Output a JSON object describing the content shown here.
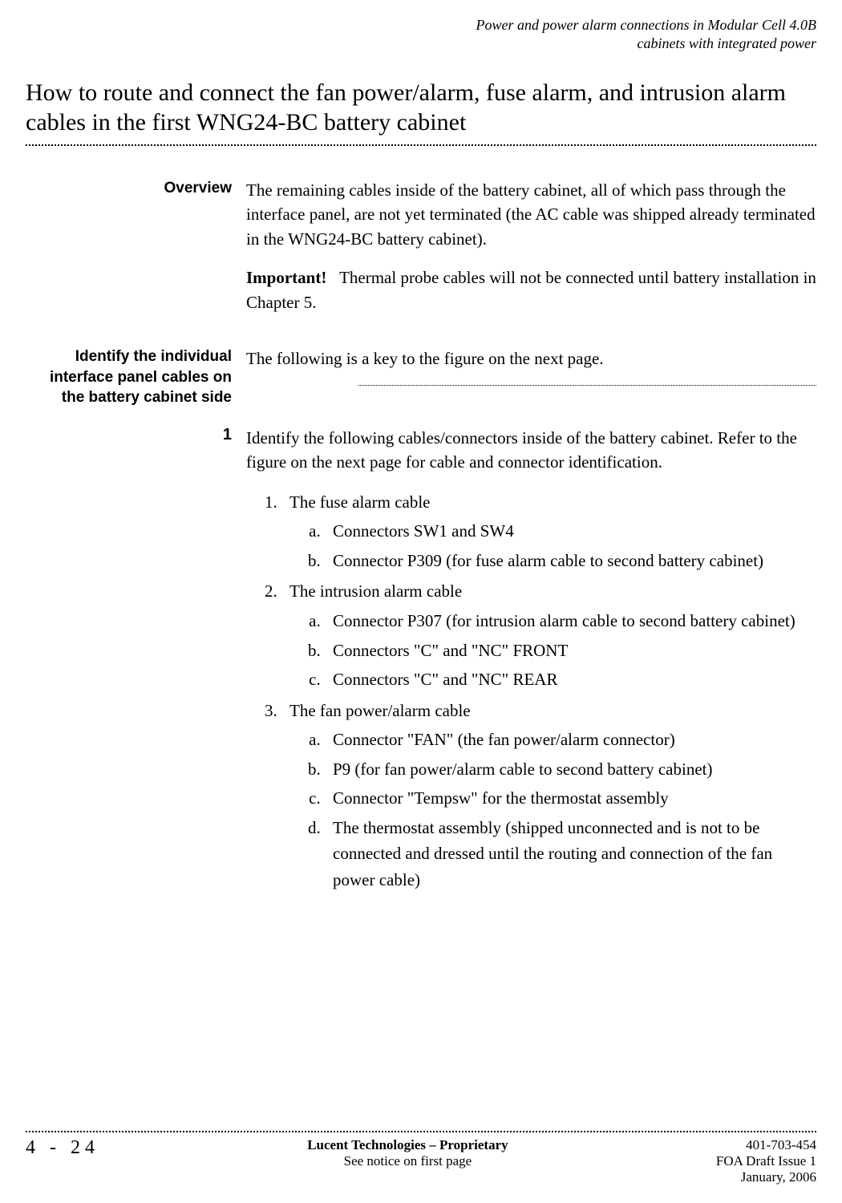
{
  "runningHeader": {
    "line1": "Power and power alarm connections in Modular Cell 4.0B",
    "line2": "cabinets with integrated power"
  },
  "heading": "How to route and connect the fan power/alarm, fuse alarm, and intrusion alarm cables in the first WNG24-BC battery cabinet",
  "sections": {
    "overview": {
      "label": "Overview",
      "para": "The remaining cables inside of the battery cabinet, all of which pass through the interface panel, are not yet terminated (the AC cable was shipped already terminated in the WNG24-BC battery cabinet).",
      "importantLabel": "Important!",
      "importantText": "Thermal probe cables will not be connected until battery installation in Chapter 5."
    },
    "identify": {
      "label": "Identify the individual interface panel cables on the battery cabinet side",
      "para": "The following is a key to the figure on the next page."
    },
    "step1": {
      "number": "1",
      "intro": "Identify the following cables/connectors inside of the battery cabinet. Refer to the figure on the next page for cable and connector identification.",
      "list": [
        {
          "text": "The fuse alarm cable",
          "sub": [
            "Connectors SW1 and SW4",
            "Connector P309 (for fuse alarm cable to second battery cabinet)"
          ]
        },
        {
          "text": "The intrusion alarm cable",
          "sub": [
            "Connector P307 (for intrusion alarm cable to second battery cabinet)",
            "Connectors \"C\" and \"NC\" FRONT",
            "Connectors \"C\" and \"NC\" REAR"
          ]
        },
        {
          "text": "The fan power/alarm cable",
          "sub": [
            "Connector \"FAN\" (the fan power/alarm connector)",
            "P9 (for fan power/alarm cable to second battery cabinet)",
            "Connector \"Tempsw\" for the thermostat assembly",
            "The thermostat assembly (shipped unconnected and is not to be connected and dressed until the routing and connection of the fan power cable)"
          ]
        }
      ]
    }
  },
  "footer": {
    "pageNumber": "4 - 24",
    "centerLine1": "Lucent Technologies – Proprietary",
    "centerLine2": "See notice on first page",
    "rightLine1": "401-703-454",
    "rightLine2": "FOA Draft Issue 1",
    "rightLine3": "January, 2006"
  }
}
